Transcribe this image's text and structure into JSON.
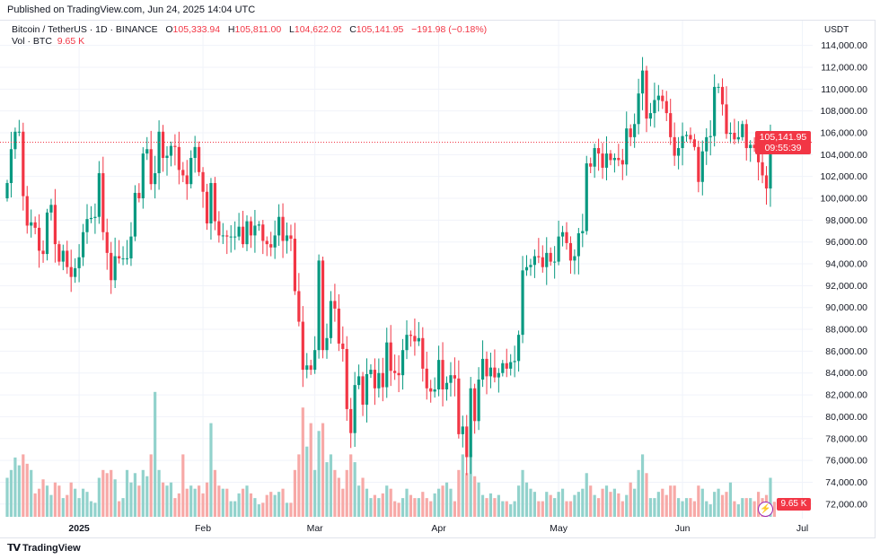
{
  "published": "Published on TradingView.com, Jun 24, 2025 14:04 UTC",
  "legend": {
    "symbol": "Bitcoin / TetherUS · 1D · BINANCE",
    "o_label": "O",
    "o": "105,333.94",
    "h_label": "H",
    "h": "105,811.00",
    "l_label": "L",
    "l": "104,622.02",
    "c_label": "C",
    "c": "105,141.95",
    "change": "−191.98 (−0.18%)",
    "vol_label": "Vol · BTC",
    "vol": "9.65 K"
  },
  "price_axis": {
    "currency": "USDT",
    "last_price": "105,141.95",
    "countdown": "09:55:39",
    "vol_tag": "9.65 K"
  },
  "logo_text": "TradingView",
  "colors": {
    "up": "#089981",
    "down": "#f23645",
    "up_volume": "#92d2cc",
    "down_volume": "#f7a9a7",
    "grid": "#f0f3fa"
  },
  "chart_data": {
    "type": "candlestick",
    "symbol": "BTCUSDT",
    "interval": "1D",
    "start_date": "2024-12-14",
    "end_date": "2025-06-24",
    "first_open": 100.0,
    "price_unit": "thousand USDT",
    "ylim": [
      72000,
      116000
    ],
    "y_ticks": [
      "114,000.00",
      "112,000.00",
      "110,000.00",
      "108,000.00",
      "106,000.00",
      "104,000.00",
      "102,000.00",
      "100,000.00",
      "98,000.00",
      "96,000.00",
      "94,000.00",
      "92,000.00",
      "90,000.00",
      "88,000.00",
      "86,000.00",
      "84,000.00",
      "82,000.00",
      "80,000.00",
      "78,000.00",
      "76,000.00",
      "74,000.00",
      "72,000.00"
    ],
    "x_ticks": [
      {
        "label": "2025",
        "date": "2025-01-01"
      },
      {
        "label": "Feb",
        "date": "2025-02-01"
      },
      {
        "label": "Mar",
        "date": "2025-03-01"
      },
      {
        "label": "Apr",
        "date": "2025-04-01"
      },
      {
        "label": "May",
        "date": "2025-05-01"
      },
      {
        "label": "Jun",
        "date": "2025-06-01"
      },
      {
        "label": "Jul",
        "date": "2025-07-01"
      }
    ],
    "last_candle": {
      "open": 105333.94,
      "high": 105811.0,
      "low": 104622.02,
      "close": 105141.95
    },
    "closes": [
      101.4,
      104.5,
      106.1,
      106.1,
      100.2,
      97.5,
      97.8,
      97.3,
      95.2,
      94.9,
      98.7,
      99.4,
      95.8,
      94.2,
      95.2,
      93.7,
      92.8,
      93.6,
      94.6,
      96.9,
      98.1,
      98.2,
      98.3,
      102.3,
      96.9,
      95.0,
      92.5,
      94.7,
      94.5,
      94.5,
      94.5,
      96.5,
      100.5,
      100.0,
      104.1,
      104.5,
      101.3,
      102.3,
      106.1,
      103.7,
      103.9,
      104.8,
      104.7,
      102.6,
      102.1,
      101.3,
      103.7,
      104.7,
      102.4,
      100.6,
      97.7,
      101.4,
      97.9,
      96.6,
      96.6,
      96.5,
      96.5,
      96.5,
      97.4,
      95.8,
      97.9,
      96.6,
      97.5,
      97.6,
      96.1,
      95.8,
      95.5,
      96.6,
      98.3,
      96.1,
      96.6,
      96.3,
      91.5,
      88.7,
      84.3,
      84.7,
      84.3,
      86.1,
      94.3,
      86.1,
      87.2,
      90.6,
      89.9,
      86.7,
      86.2,
      80.7,
      78.5,
      82.9,
      83.7,
      81.1,
      83.9,
      84.3,
      82.6,
      84.0,
      82.7,
      86.8,
      84.2,
      84.0,
      83.8,
      86.1,
      87.5,
      87.4,
      86.9,
      87.2,
      84.4,
      82.6,
      82.3,
      82.5,
      85.2,
      82.5,
      83.1,
      83.8,
      83.5,
      78.4,
      79.1,
      76.3,
      82.6,
      79.6,
      83.4,
      85.3,
      83.7,
      84.5,
      83.6,
      84.0,
      84.9,
      84.4,
      85.0,
      85.1,
      87.5,
      93.4,
      93.7,
      93.9,
      94.7,
      94.6,
      93.7,
      95.0,
      94.2,
      94.2,
      96.5,
      96.9,
      95.9,
      94.3,
      94.7,
      96.8,
      97.0,
      103.2,
      102.9,
      104.6,
      104.1,
      102.8,
      104.1,
      103.5,
      103.7,
      103.5,
      103.1,
      106.4,
      105.6,
      106.8,
      109.6,
      111.7,
      107.3,
      107.8,
      109.0,
      109.4,
      108.9,
      107.8,
      105.6,
      103.9,
      104.6,
      105.7,
      105.8,
      105.4,
      104.7,
      101.5,
      104.3,
      105.6,
      105.7,
      110.2,
      110.2,
      108.6,
      105.9,
      106.0,
      105.4,
      105.6,
      106.8,
      104.6,
      104.9,
      104.6,
      103.3,
      102.1,
      100.9,
      105.3,
      105.14
    ],
    "volume_unit": "K BTC",
    "volumes": [
      25,
      30,
      38,
      33,
      40,
      34,
      30,
      15,
      18,
      24,
      20,
      14,
      22,
      20,
      12,
      14,
      22,
      18,
      12,
      18,
      16,
      10,
      9,
      25,
      30,
      28,
      30,
      24,
      10,
      12,
      30,
      22,
      28,
      20,
      30,
      26,
      40,
      80,
      30,
      22,
      20,
      22,
      12,
      15,
      40,
      18,
      20,
      18,
      20,
      15,
      22,
      60,
      30,
      20,
      18,
      18,
      10,
      10,
      15,
      18,
      20,
      15,
      12,
      8,
      9,
      14,
      16,
      14,
      16,
      18,
      9,
      9,
      30,
      40,
      70,
      45,
      60,
      30,
      55,
      60,
      35,
      40,
      30,
      25,
      18,
      30,
      40,
      35,
      20,
      25,
      18,
      12,
      14,
      12,
      15,
      20,
      18,
      10,
      9,
      12,
      18,
      14,
      12,
      12,
      16,
      12,
      10,
      15,
      18,
      20,
      22,
      18,
      10,
      30,
      40,
      28,
      40,
      26,
      22,
      14,
      12,
      15,
      12,
      14,
      10,
      10,
      8,
      10,
      20,
      30,
      22,
      18,
      16,
      10,
      10,
      16,
      14,
      12,
      16,
      18,
      10,
      10,
      14,
      16,
      18,
      28,
      20,
      14,
      12,
      18,
      20,
      16,
      18,
      15,
      10,
      14,
      22,
      18,
      30,
      40,
      28,
      12,
      12,
      16,
      18,
      14,
      20,
      20,
      12,
      10,
      12,
      12,
      10,
      20,
      18,
      10,
      8,
      16,
      18,
      14,
      16,
      22,
      10,
      8,
      12,
      12,
      12,
      10,
      16,
      12,
      14,
      25,
      9.65
    ]
  }
}
